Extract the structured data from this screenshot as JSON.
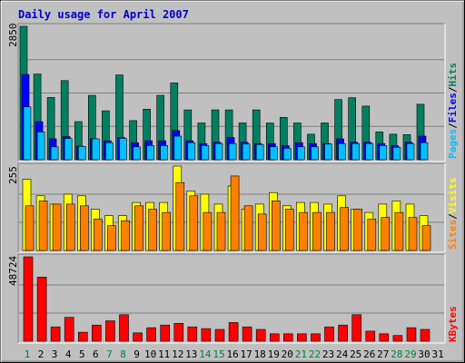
{
  "chart_data": {
    "type": "bar",
    "title": "Daily usage for April 2007",
    "categories": [
      "1",
      "2",
      "3",
      "4",
      "5",
      "6",
      "7",
      "8",
      "9",
      "10",
      "11",
      "12",
      "13",
      "14",
      "15",
      "16",
      "17",
      "18",
      "19",
      "20",
      "21",
      "22",
      "23",
      "24",
      "25",
      "26",
      "27",
      "28",
      "29",
      "30",
      "31"
    ],
    "weekend_days": [
      "1",
      "7",
      "8",
      "14",
      "15",
      "21",
      "22",
      "28",
      "29"
    ],
    "colors": {
      "hits": "#008060",
      "files": "#0000ff",
      "pages": "#00c0ff",
      "visits": "#ffff00",
      "sites": "#ff8000",
      "kbytes": "#ff0000",
      "weekday_label": "#000000",
      "weekend_label": "#008040",
      "plot_bg": "#c0c0c0",
      "frame_bg": "#c0c0c0"
    },
    "panels": [
      {
        "name": "hits_files_pages",
        "max_label": "2850",
        "ymax": 2850,
        "side_labels": [
          {
            "text": "Pages",
            "color": "#00c0ff"
          },
          {
            "text": "/",
            "color": "#000000"
          },
          {
            "text": "Files",
            "color": "#0000ff"
          },
          {
            "text": "/",
            "color": "#000000"
          },
          {
            "text": "Hits",
            "color": "#008060"
          }
        ],
        "series": [
          {
            "name": "Hits",
            "color": "#008060",
            "values": [
              2850,
              1830,
              1330,
              1690,
              815,
              1375,
              1045,
              1810,
              835,
              1080,
              1375,
              1640,
              1065,
              785,
              1065,
              1065,
              785,
              1065,
              785,
              905,
              785,
              545,
              785,
              1285,
              1325,
              1145,
              595,
              545,
              535,
              1185,
              null
            ]
          },
          {
            "name": "Files",
            "color": "#0000ff",
            "values": [
              1820,
              815,
              445,
              495,
              290,
              445,
              405,
              475,
              365,
              405,
              405,
              625,
              405,
              345,
              375,
              475,
              375,
              345,
              345,
              300,
              365,
              345,
              345,
              445,
              375,
              375,
              345,
              300,
              375,
              505,
              null
            ]
          },
          {
            "name": "Pages",
            "color": "#00c0ff",
            "values": [
              1130,
              595,
              275,
              455,
              285,
              445,
              365,
              455,
              275,
              305,
              305,
              505,
              365,
              305,
              345,
              345,
              335,
              325,
              275,
              245,
              275,
              275,
              335,
              345,
              345,
              345,
              305,
              265,
              345,
              365,
              null
            ]
          }
        ]
      },
      {
        "name": "visits_sites",
        "max_label": "255",
        "ymax": 255,
        "side_labels": [
          {
            "text": "Sites",
            "color": "#ff8000"
          },
          {
            "text": "/",
            "color": "#000000"
          },
          {
            "text": "Visits",
            "color": "#ffff00"
          }
        ],
        "series": [
          {
            "name": "Visits",
            "color": "#ffff00",
            "values": [
              215,
              165,
              140,
              170,
              165,
              125,
              105,
              105,
              145,
              145,
              145,
              255,
              180,
              170,
              140,
              195,
              125,
              140,
              175,
              135,
              145,
              145,
              140,
              165,
              125,
              115,
              140,
              150,
              140,
              105,
              null
            ]
          },
          {
            "name": "Sites",
            "color": "#ff8000",
            "values": [
              135,
              150,
              140,
              140,
              135,
              95,
              75,
              90,
              135,
              125,
              115,
              205,
              165,
              115,
              115,
              225,
              135,
              110,
              150,
              125,
              115,
              115,
              115,
              130,
              125,
              95,
              100,
              115,
              100,
              75,
              null
            ]
          }
        ]
      },
      {
        "name": "kbytes",
        "max_label": "48724",
        "ymax": 48724,
        "side_labels": [
          {
            "text": "KBytes",
            "color": "#ff0000"
          }
        ],
        "series": [
          {
            "name": "KBytes",
            "color": "#ff0000",
            "values": [
              48724,
              37000,
              8300,
              13800,
              5200,
              9300,
              11800,
              15300,
              4800,
              7800,
              9300,
              10300,
              8300,
              7300,
              6800,
              10800,
              8300,
              6800,
              4300,
              4300,
              4300,
              4300,
              8300,
              9300,
              15300,
              5800,
              4300,
              3300,
              7800,
              6800,
              null
            ]
          }
        ]
      }
    ]
  }
}
